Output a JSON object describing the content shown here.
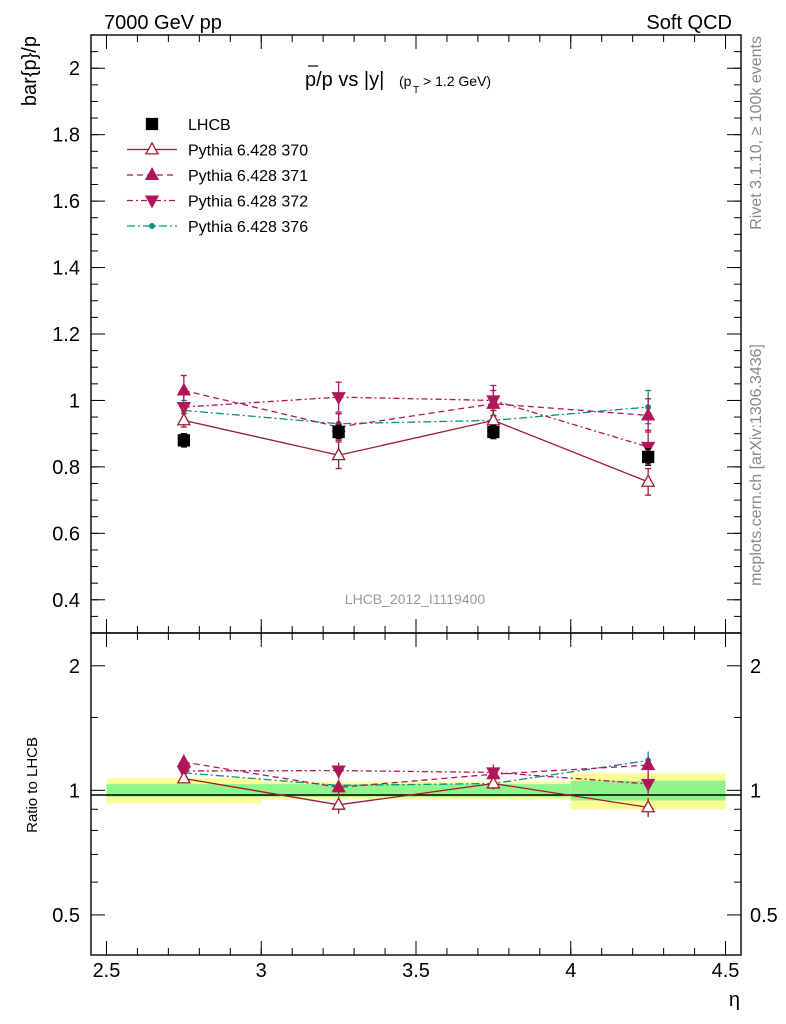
{
  "header": {
    "left": "7000 GeV pp",
    "right": "Soft QCD"
  },
  "side": {
    "top": "Rivet 3.1.10, ≥ 100k events",
    "bottom": "mcplots.cern.ch [arXiv:1306.3436]"
  },
  "watermark": "LHCB_2012_I1119400",
  "colors": {
    "data": "#000000",
    "pythia370": "#9b1c2e",
    "pythia371": "#b0175a",
    "pythia372": "#b0175a",
    "pythia376": "#0a8f80",
    "band_inner": "#8ef58e",
    "band_outer": "#fdfd95"
  },
  "chart_data": {
    "type": "scatter",
    "title": "p̄/p vs |y| (pT > 1.2 GeV)",
    "xlabel": "η",
    "ylabel": "bar{p}/p",
    "ratio_ylabel": "Ratio to LHCB",
    "xlim": [
      2.45,
      4.55
    ],
    "ylim": [
      0.3,
      2.1
    ],
    "ratio_ylim": [
      0.4,
      2.4
    ],
    "ratio_scale": "log",
    "x_ticks": [
      "2.5",
      "3",
      "3.5",
      "4",
      "4.5"
    ],
    "y_ticks": [
      "0.4",
      "0.6",
      "0.8",
      "1",
      "1.2",
      "1.4",
      "1.6",
      "1.8",
      "2"
    ],
    "ratio_ticks": [
      "0.5",
      "1",
      "2"
    ],
    "legend_position": "top-left",
    "legend": [
      "LHCB",
      "Pythia 6.428 370",
      "Pythia 6.428 371",
      "Pythia 6.428 372",
      "Pythia 6.428 376"
    ],
    "x_bins": [
      [
        2.5,
        3.0
      ],
      [
        3.0,
        3.5
      ],
      [
        3.5,
        4.0
      ],
      [
        4.0,
        4.5
      ]
    ],
    "x": [
      2.75,
      3.25,
      3.75,
      4.25
    ],
    "series": [
      {
        "name": "LHCB",
        "values": [
          0.88,
          0.905,
          0.905,
          0.83
        ],
        "errors": [
          0.02,
          0.02,
          0.02,
          0.025
        ],
        "ratio_band_inner": [
          0.035,
          0.035,
          0.035,
          0.055
        ],
        "ratio_band_outer": [
          0.07,
          0.05,
          0.05,
          0.1
        ]
      },
      {
        "name": "Pythia 6.428 370",
        "values": [
          0.94,
          0.835,
          0.94,
          0.755
        ],
        "errors": [
          0.02,
          0.04,
          0.03,
          0.04
        ]
      },
      {
        "name": "Pythia 6.428 371",
        "values": [
          1.03,
          0.92,
          0.99,
          0.955
        ],
        "errors": [
          0.045,
          0.04,
          0.04,
          0.05
        ]
      },
      {
        "name": "Pythia 6.428 372",
        "values": [
          0.98,
          1.01,
          1.0,
          0.86
        ],
        "errors": [
          0.04,
          0.045,
          0.045,
          0.05
        ]
      },
      {
        "name": "Pythia 6.428 376",
        "values": [
          0.97,
          0.93,
          0.94,
          0.98
        ],
        "errors": [
          0.03,
          0.03,
          0.03,
          0.05
        ]
      }
    ]
  }
}
